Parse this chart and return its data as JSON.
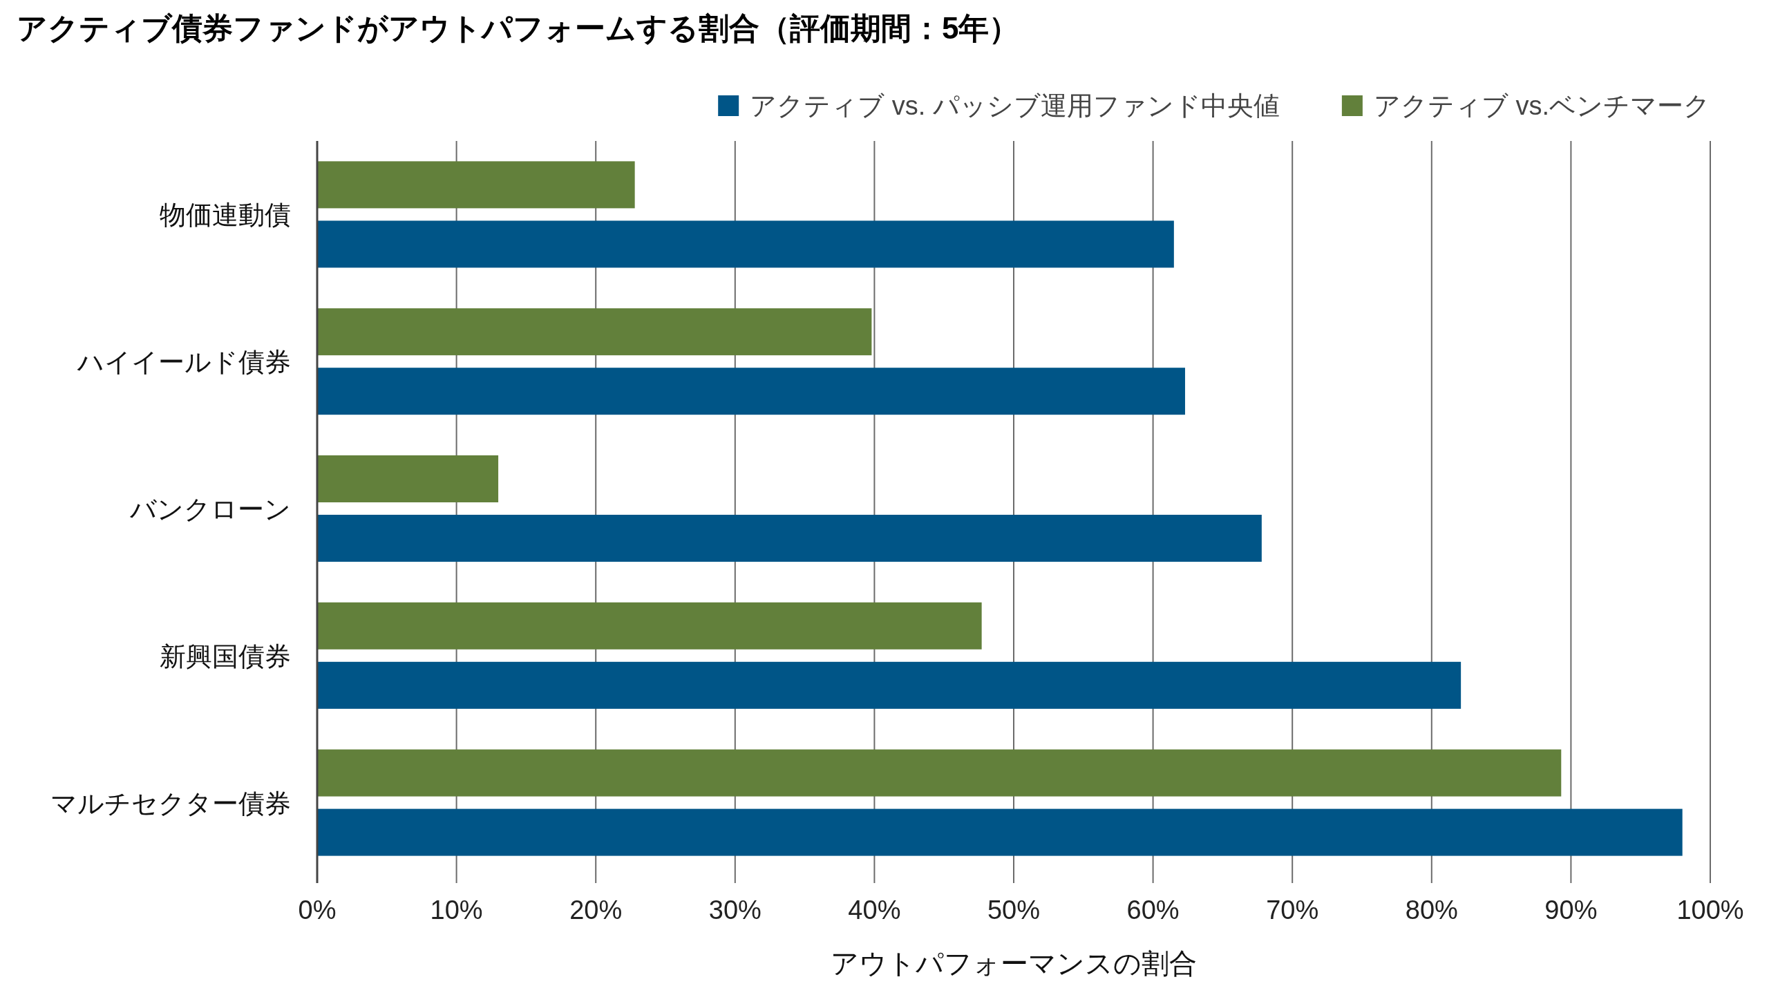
{
  "chart_data": {
    "type": "bar",
    "orientation": "horizontal",
    "title": "アクティブ債券ファンドがアウトパフォームする割合（評価期間：5年）",
    "xlabel": "アウトパフォーマンスの割合",
    "categories": [
      "物価連動債",
      "ハイイールド債券",
      "バンクローン",
      "新興国債券",
      "マルチセクター債券"
    ],
    "series": [
      {
        "name": "アクティブ vs. パッシブ運用ファンド中央値",
        "color": "#005587",
        "values": [
          61.5,
          62.3,
          67.8,
          82.1,
          98.0
        ]
      },
      {
        "name": "アクティブ vs.ベンチマーク",
        "color": "#62803b",
        "values": [
          22.8,
          39.8,
          13.0,
          47.7,
          89.3
        ]
      }
    ],
    "xlim": [
      0,
      100
    ],
    "xticks": [
      {
        "value": 0,
        "label": "0%"
      },
      {
        "value": 10,
        "label": "10%"
      },
      {
        "value": 20,
        "label": "20%"
      },
      {
        "value": 30,
        "label": "30%"
      },
      {
        "value": 40,
        "label": "40%"
      },
      {
        "value": 50,
        "label": "50%"
      },
      {
        "value": 60,
        "label": "60%"
      },
      {
        "value": 70,
        "label": "70%"
      },
      {
        "value": 80,
        "label": "80%"
      },
      {
        "value": 90,
        "label": "90%"
      },
      {
        "value": 100,
        "label": "100%"
      }
    ],
    "grid": "x",
    "legend": "top right"
  }
}
